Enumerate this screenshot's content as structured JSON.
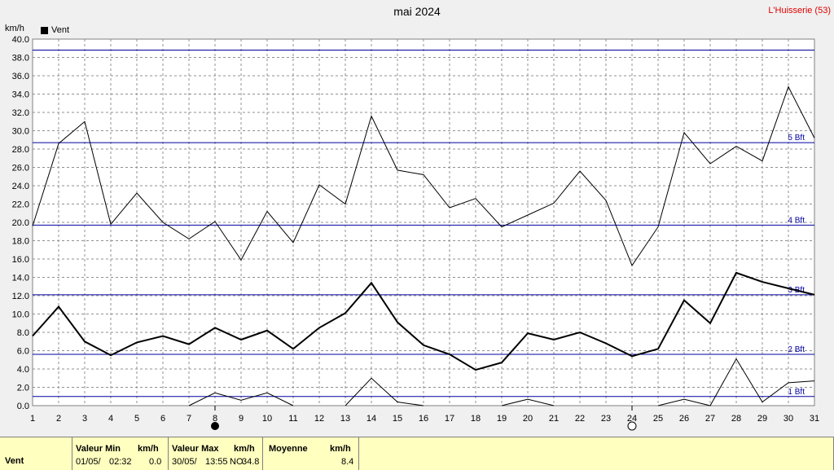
{
  "header": {
    "title": "mai 2024",
    "location": "L'Huisserie (53)",
    "unit": "km/h",
    "legend_label": "Vent"
  },
  "chart_data": {
    "type": "line",
    "title": "mai 2024",
    "ylabel": "km/h",
    "ylim": [
      0,
      40
    ],
    "y_ticks": [
      "0.0",
      "2.0",
      "4.0",
      "6.0",
      "8.0",
      "10.0",
      "12.0",
      "14.0",
      "16.0",
      "18.0",
      "20.0",
      "22.0",
      "24.0",
      "26.0",
      "28.0",
      "30.0",
      "32.0",
      "34.0",
      "36.0",
      "38.0",
      "40.0"
    ],
    "x": [
      1,
      2,
      3,
      4,
      5,
      6,
      7,
      8,
      9,
      10,
      11,
      12,
      13,
      14,
      15,
      16,
      17,
      18,
      19,
      20,
      21,
      22,
      23,
      24,
      25,
      26,
      27,
      28,
      29,
      30,
      31
    ],
    "x_ticks": [
      "1",
      "2",
      "3",
      "4",
      "5",
      "6",
      "7",
      "8",
      "9",
      "10",
      "11",
      "12",
      "13",
      "14",
      "15",
      "16",
      "17",
      "18",
      "19",
      "20",
      "21",
      "22",
      "23",
      "24",
      "25",
      "26",
      "27",
      "28",
      "29",
      "30",
      "31"
    ],
    "grid": true,
    "legend": "top-left",
    "series": [
      {
        "name": "Vent",
        "color": "#000000",
        "values": [
          7.6,
          10.8,
          7.0,
          5.5,
          6.9,
          7.6,
          6.7,
          8.5,
          7.2,
          8.2,
          6.2,
          8.5,
          10.1,
          13.4,
          9.1,
          6.6,
          5.6,
          3.9,
          4.7,
          7.9,
          7.2,
          8.0,
          6.8,
          5.4,
          6.2,
          11.5,
          9.0,
          14.5,
          13.5,
          12.8,
          12.1
        ]
      },
      {
        "color": "#000000",
        "values": [
          19.6,
          28.6,
          31.0,
          19.8,
          23.2,
          20.0,
          18.2,
          20.1,
          15.9,
          21.2,
          17.8,
          24.1,
          22.0,
          31.6,
          25.7,
          25.2,
          21.6,
          22.6,
          19.5,
          20.8,
          22.1,
          25.6,
          22.4,
          15.3,
          19.5,
          29.8,
          26.4,
          28.3,
          26.7,
          34.8,
          29.2
        ]
      },
      {
        "color": "#000000",
        "values": [
          null,
          null,
          null,
          null,
          null,
          null,
          0.0,
          1.4,
          0.6,
          1.4,
          0.0,
          null,
          0.0,
          3.0,
          0.4,
          0.0,
          null,
          null,
          0.0,
          0.7,
          0.0,
          null,
          null,
          null,
          0.0,
          0.7,
          0.0,
          5.1,
          0.4,
          2.5,
          2.7
        ]
      }
    ],
    "reference_lines": [
      {
        "value": 1.0,
        "label": "1 Bft",
        "color": "#0000a0"
      },
      {
        "value": 5.6,
        "label": "2 Bft",
        "color": "#0000a0"
      },
      {
        "value": 12.1,
        "label": "3 Bft",
        "color": "#0000a0"
      },
      {
        "value": 19.7,
        "label": "4 Bft",
        "color": "#0000a0"
      },
      {
        "value": 28.7,
        "label": "5 Bft",
        "color": "#0000a0"
      },
      {
        "value": 38.8,
        "label": "",
        "color": "#0000a0"
      }
    ],
    "moon_phases": [
      {
        "day": 8,
        "phase": "new",
        "icon": "new-moon-icon"
      },
      {
        "day": 24,
        "phase": "full",
        "icon": "full-moon-icon"
      }
    ]
  },
  "footer": {
    "row_label": "Vent",
    "min": {
      "header": "Valeur Min",
      "unit": "km/h",
      "date": "01/05/",
      "time": "02:32",
      "value": "0.0"
    },
    "max": {
      "header": "Valeur Max",
      "unit": "km/h",
      "date": "30/05/",
      "time": "13:55",
      "extra": "NO",
      "value": "34.8"
    },
    "avg": {
      "header": "Moyenne",
      "unit": "km/h",
      "value": "8.4"
    }
  }
}
